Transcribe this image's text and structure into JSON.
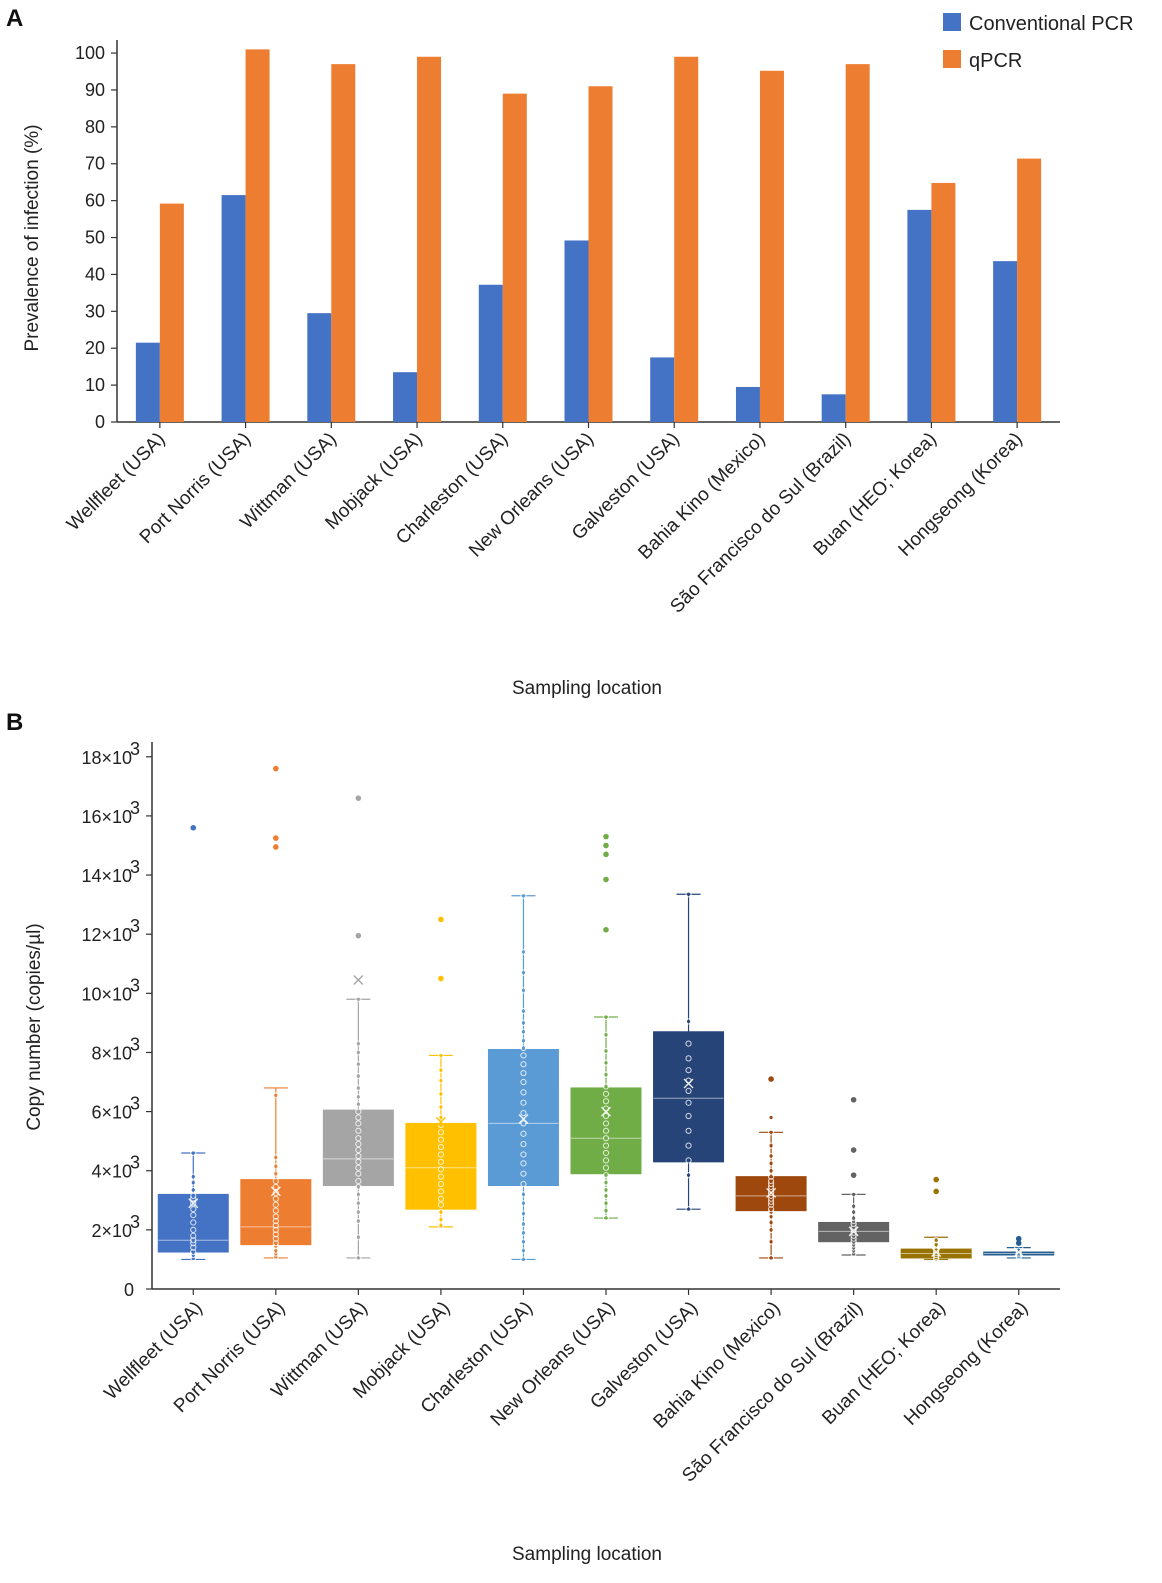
{
  "chart_data": [
    {
      "type": "bar",
      "panel_label": "A",
      "categories": [
        "Wellfleet (USA)",
        "Port Norris (USA)",
        "Wittman (USA)",
        "Mobjack (USA)",
        "Charleston (USA)",
        "New Orleans (USA)",
        "Galveston (USA)",
        "Bahia Kino (Mexico)",
        "São Francisco do Sul (Brazil)",
        "Buan (HEO; Korea)",
        "Hongseong (Korea)"
      ],
      "series": [
        {
          "name": "Conventional PCR",
          "color": "#4472C4",
          "values": [
            21.5,
            61.5,
            29.5,
            13.5,
            37.2,
            49.2,
            17.5,
            9.5,
            7.5,
            57.5,
            43.6
          ]
        },
        {
          "name": "qPCR",
          "color": "#ED7D31",
          "values": [
            59.2,
            101.0,
            97.0,
            99.0,
            89.0,
            91.0,
            99.0,
            95.2,
            97.0,
            64.8,
            71.4
          ]
        }
      ],
      "xlabel": "Sampling location",
      "ylabel": "Prevalence of infection (%)",
      "ylim": [
        0,
        103
      ],
      "yticks": [
        "0",
        "10",
        "20",
        "30",
        "40",
        "50",
        "60",
        "70",
        "80",
        "90",
        "100"
      ],
      "legend": "top-right",
      "grid": false
    },
    {
      "type": "box",
      "panel_label": "B",
      "categories": [
        "Wellfleet (USA)",
        "Port Norris (USA)",
        "Wittman (USA)",
        "Mobjack (USA)",
        "Charleston (USA)",
        "New Orleans (USA)",
        "Galveston (USA)",
        "Bahia Kino (Mexico)",
        "São Francisco do Sul (Brazil)",
        "Buan (HEO; Korea)",
        "Hongseong (Korea)"
      ],
      "colors": [
        "#4472C4",
        "#ED7D31",
        "#A5A5A5",
        "#FFC000",
        "#5B9BD5",
        "#70AD47",
        "#264478",
        "#9E480E",
        "#636363",
        "#997300",
        "#255E91"
      ],
      "boxes": [
        {
          "min": 1000,
          "q1": 1250,
          "median": 1650,
          "q3": 3200,
          "max": 4600,
          "mean": 2900,
          "outliers": [
            15600
          ],
          "points": [
            1050,
            1150,
            1250,
            1400,
            1550,
            1650,
            1800,
            2000,
            2250,
            2500,
            2700,
            2900,
            3050,
            3150,
            3350,
            3600,
            3800,
            4600
          ]
        },
        {
          "min": 1050,
          "q1": 1500,
          "median": 2100,
          "q3": 3700,
          "max": 6800,
          "mean": 3300,
          "outliers": [
            14950,
            15250,
            17600
          ],
          "points": [
            1100,
            1200,
            1300,
            1450,
            1550,
            1700,
            1850,
            2000,
            2150,
            2300,
            2450,
            2650,
            2850,
            3050,
            3250,
            3450,
            3650,
            3900,
            4150,
            4450,
            6550
          ]
        },
        {
          "min": 1050,
          "q1": 3500,
          "median": 4400,
          "q3": 6050,
          "max": 9800,
          "mean": 10450,
          "outliers": [
            11950,
            16600
          ],
          "points": [
            1050,
            1750,
            2300,
            2600,
            2900,
            3200,
            3450,
            3650,
            3900,
            4100,
            4300,
            4500,
            4700,
            4900,
            5100,
            5350,
            5600,
            5800,
            6000,
            6250,
            6500,
            6800,
            7200,
            7600,
            8000,
            8300,
            9800
          ]
        },
        {
          "min": 2100,
          "q1": 2700,
          "median": 4100,
          "q3": 5600,
          "max": 7900,
          "mean": 5650,
          "outliers": [
            10500,
            12500
          ],
          "points": [
            2150,
            2350,
            2600,
            2850,
            3050,
            3300,
            3550,
            3800,
            4050,
            4300,
            4550,
            4800,
            5050,
            5300,
            5550,
            5800,
            6150,
            6600,
            7050,
            7400,
            7900
          ]
        },
        {
          "min": 1000,
          "q1": 3500,
          "median": 5600,
          "q3": 8100,
          "max": 13300,
          "mean": 5750,
          "outliers": [],
          "points": [
            1000,
            1300,
            1600,
            1900,
            2200,
            2550,
            2900,
            3200,
            3550,
            3900,
            4250,
            4550,
            4900,
            5250,
            5600,
            5950,
            6300,
            6650,
            7000,
            7300,
            7600,
            7900,
            8150,
            8400,
            8700,
            9000,
            9400,
            10100,
            10700,
            11400,
            13300
          ]
        },
        {
          "min": 2400,
          "q1": 3900,
          "median": 5100,
          "q3": 6800,
          "max": 9200,
          "mean": 6000,
          "outliers": [
            12150,
            13850,
            14700,
            15000,
            15300
          ],
          "points": [
            2400,
            2650,
            2900,
            3150,
            3350,
            3600,
            3850,
            4100,
            4350,
            4600,
            4850,
            5100,
            5350,
            5600,
            5850,
            6100,
            6350,
            6600,
            6850,
            7250,
            7650,
            8050,
            8600,
            9200
          ]
        },
        {
          "min": 2700,
          "q1": 4300,
          "median": 6450,
          "q3": 8700,
          "max": 13350,
          "mean": 6950,
          "outliers": [],
          "points": [
            2700,
            3850,
            4350,
            4850,
            5350,
            5850,
            6300,
            6700,
            7050,
            7400,
            7800,
            8300,
            9050,
            13350
          ]
        },
        {
          "min": 1050,
          "q1": 2650,
          "median": 3150,
          "q3": 3800,
          "max": 5300,
          "mean": 3250,
          "outliers": [
            7100
          ],
          "points": [
            1050,
            1600,
            2000,
            2250,
            2450,
            2600,
            2700,
            2850,
            2950,
            3050,
            3150,
            3250,
            3350,
            3450,
            3550,
            3650,
            3800,
            4000,
            4250,
            4500,
            4850,
            5300,
            5800
          ]
        },
        {
          "min": 1150,
          "q1": 1600,
          "median": 1950,
          "q3": 2250,
          "max": 3200,
          "mean": 1950,
          "outliers": [
            3850,
            4700,
            6400
          ],
          "points": [
            1200,
            1300,
            1400,
            1500,
            1600,
            1700,
            1800,
            1900,
            2000,
            2100,
            2200,
            2300,
            2400,
            2600,
            2800,
            3200
          ]
        },
        {
          "min": 1000,
          "q1": 1050,
          "median": 1200,
          "q3": 1350,
          "max": 1750,
          "mean": 1250,
          "outliers": [
            3300,
            3700
          ],
          "points": [
            1020,
            1080,
            1150,
            1220,
            1300,
            1500,
            1650
          ]
        },
        {
          "min": 1050,
          "q1": 1150,
          "median": 1200,
          "q3": 1250,
          "max": 1400,
          "mean": 1250,
          "outliers": [
            1550,
            1700
          ],
          "points": [
            1080,
            1130,
            1180,
            1230,
            1300
          ]
        }
      ],
      "xlabel": "Sampling location",
      "ylabel": "Copy number (copies/µl)",
      "ylim": [
        0,
        18500
      ],
      "yticks": [
        {
          "value": 0,
          "mant": "0",
          "exp": ""
        },
        {
          "value": 2000,
          "mant": "2×10",
          "exp": "3"
        },
        {
          "value": 4000,
          "mant": "4×10",
          "exp": "3"
        },
        {
          "value": 6000,
          "mant": "6×10",
          "exp": "3"
        },
        {
          "value": 8000,
          "mant": "8×10",
          "exp": "3"
        },
        {
          "value": 10000,
          "mant": "10×10",
          "exp": "3"
        },
        {
          "value": 12000,
          "mant": "12×10",
          "exp": "3"
        },
        {
          "value": 14000,
          "mant": "14×10",
          "exp": "3"
        },
        {
          "value": 16000,
          "mant": "16×10",
          "exp": "3"
        },
        {
          "value": 18000,
          "mant": "18×10",
          "exp": "3"
        }
      ],
      "grid": false
    }
  ]
}
